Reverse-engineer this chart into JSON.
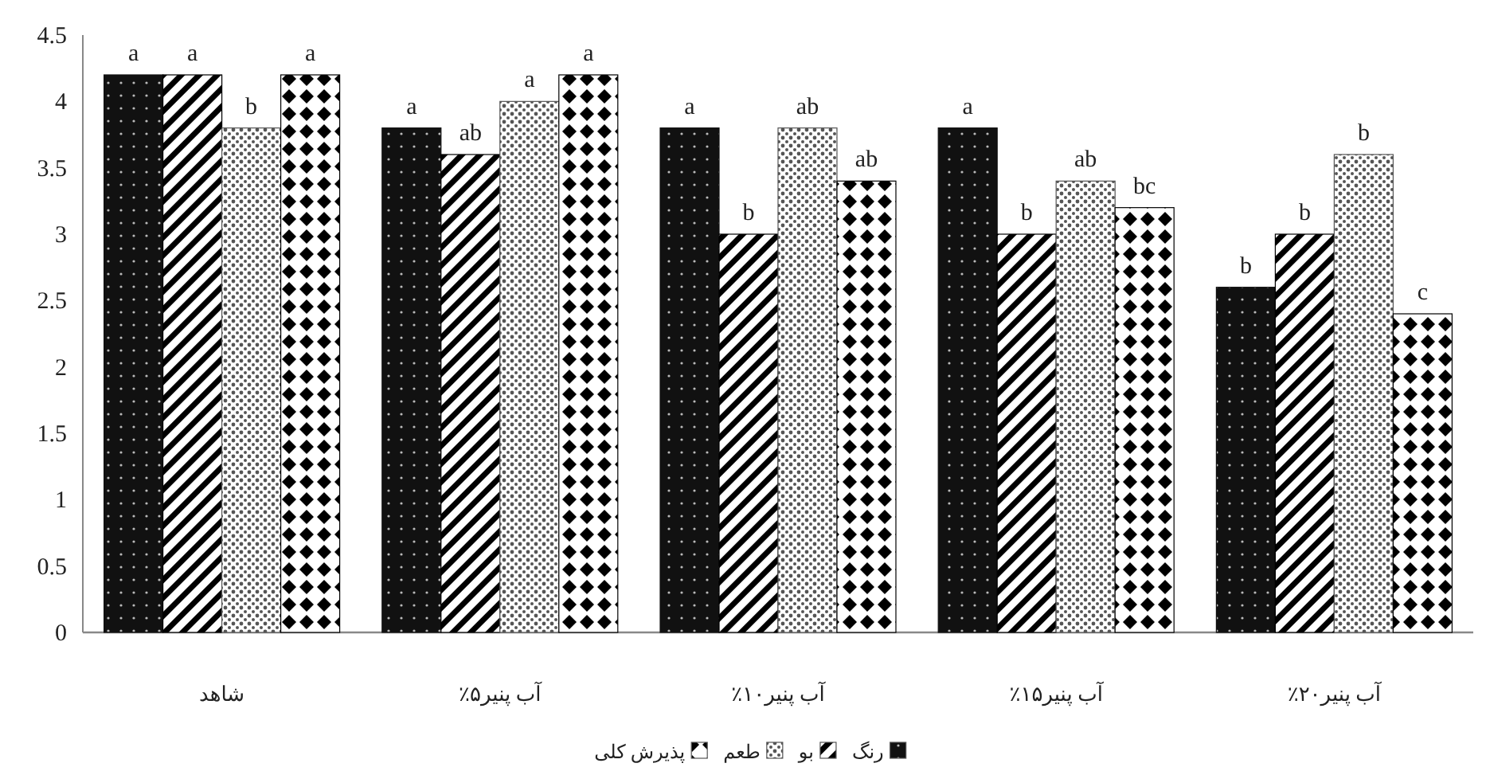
{
  "chart_data": {
    "type": "bar",
    "categories": [
      "شاهد",
      "آب پنیر۵٪",
      "آب پنیر۱۰٪",
      "آب پنیر۱۵٪",
      "آب پنیر۲۰٪"
    ],
    "series": [
      {
        "name": "رنگ",
        "color": "#111111",
        "values": [
          4.2,
          3.8,
          3.8,
          3.8,
          2.6
        ],
        "value_labels": [
          "a",
          "a",
          "a",
          "a",
          "b"
        ]
      },
      {
        "name": "بو",
        "color": "#000000",
        "values": [
          4.2,
          3.6,
          3.0,
          3.0,
          3.0
        ],
        "value_labels": [
          "a",
          "ab",
          "b",
          "b",
          "b"
        ]
      },
      {
        "name": "طعم",
        "color": "#555555",
        "values": [
          3.8,
          4.0,
          3.8,
          3.4,
          3.6
        ],
        "value_labels": [
          "b",
          "a",
          "ab",
          "ab",
          "b"
        ]
      },
      {
        "name": "پذیرش کلی",
        "color": "#000000",
        "values": [
          4.2,
          4.2,
          3.4,
          3.2,
          2.4
        ],
        "value_labels": [
          "a",
          "a",
          "ab",
          "bc",
          "c"
        ]
      }
    ],
    "ylim": [
      0,
      4.5
    ],
    "yticks": [
      0,
      0.5,
      1,
      1.5,
      2,
      2.5,
      3,
      3.5,
      4,
      4.5
    ],
    "grid": false,
    "legend": "bottom"
  }
}
